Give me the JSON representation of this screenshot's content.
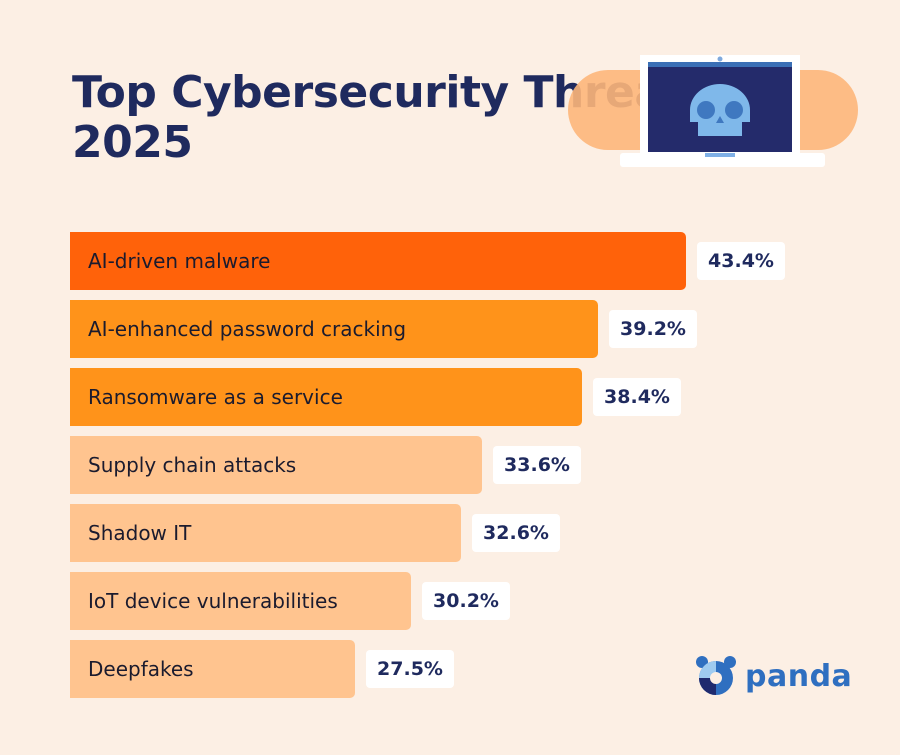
{
  "chart_data": {
    "type": "bar",
    "orientation": "horizontal",
    "title": "Top Cybersecurity Threats of 2025",
    "categories": [
      "AI-driven malware",
      "AI-enhanced password cracking",
      "Ransomware as a service",
      "Supply chain attacks",
      "Shadow IT",
      "IoT device vulnerabilities",
      "Deepfakes"
    ],
    "values": [
      43.4,
      39.2,
      38.4,
      33.6,
      32.6,
      30.2,
      27.5
    ],
    "value_labels": [
      "43.4%",
      "39.2%",
      "38.4%",
      "33.6%",
      "32.6%",
      "30.2%",
      "27.5%"
    ],
    "bar_colors": [
      "#ff620a",
      "#ff931a",
      "#ff931a",
      "#ffc48f",
      "#ffc48f",
      "#ffc48f",
      "#ffc48f"
    ],
    "grid": false,
    "legend": "none"
  },
  "colors": {
    "background": "#fcefe4",
    "title": "#1f2a5e",
    "brand": "#2f6fc0"
  },
  "illustration": "laptop-skull-icon",
  "logo": {
    "text": "panda"
  }
}
